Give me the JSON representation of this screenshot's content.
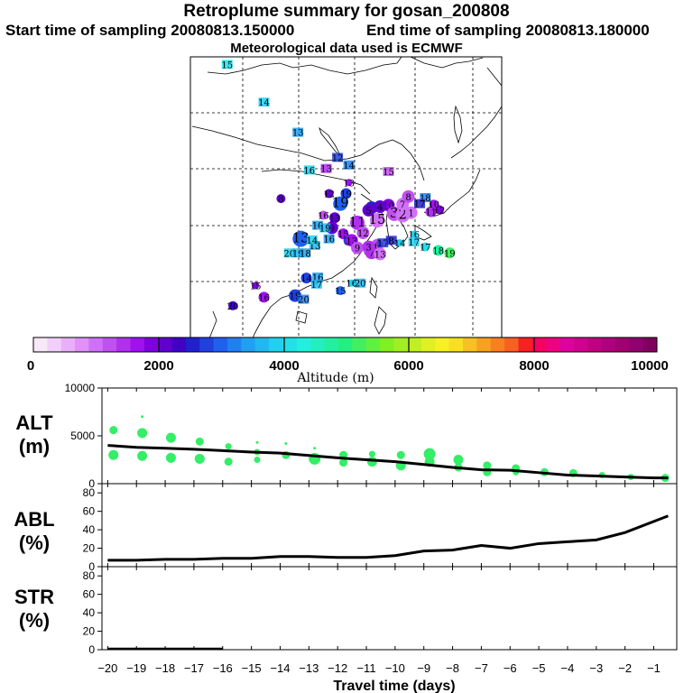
{
  "header": {
    "title": "Retroplume summary for gosan_200808",
    "start_time": "Start time of sampling 20080813.150000",
    "end_time": "End time of sampling 20080813.180000",
    "met_data": "Meteorological data used is ECMWF"
  },
  "colorbar": {
    "tick_labels": [
      "0",
      "2000",
      "4000",
      "6000",
      "8000",
      "10000"
    ],
    "label": "Altitude (m)",
    "colors": [
      "#f8e8f8",
      "#f0d0f8",
      "#e8b0f8",
      "#e090f8",
      "#d070f8",
      "#c050f0",
      "#b030f0",
      "#a010f0",
      "#8000e0",
      "#6000d0",
      "#4000c8",
      "#2020d0",
      "#2040e0",
      "#2060f0",
      "#2080f0",
      "#20a0f0",
      "#20b8f0",
      "#20d0f0",
      "#20e0e8",
      "#20f0e0",
      "#20f0c0",
      "#20f0a0",
      "#20f080",
      "#40f060",
      "#60f040",
      "#80f020",
      "#a0f020",
      "#c0f020",
      "#e0f020",
      "#f8f020",
      "#f8e020",
      "#f8c020",
      "#f8a020",
      "#f88020",
      "#f86020",
      "#f82020",
      "#f80060",
      "#f00080",
      "#e000a0",
      "#d00090",
      "#c00080",
      "#b00080",
      "#a00070",
      "#900070",
      "#800060"
    ]
  },
  "map": {
    "markers": [
      {
        "label": "15",
        "lon": 101.5,
        "lat": 74.5,
        "alt": 4000,
        "size": 0
      },
      {
        "label": "14",
        "lon": 108.0,
        "lat": 67.0,
        "alt": 3800,
        "size": 0
      },
      {
        "label": "13",
        "lon": 114.0,
        "lat": 61.0,
        "alt": 3500,
        "size": 0
      },
      {
        "label": "12",
        "lon": 121.0,
        "lat": 56.0,
        "alt": 2800,
        "size": 0
      },
      {
        "label": "14",
        "lon": 123.0,
        "lat": 54.5,
        "alt": 3300,
        "size": 0
      },
      {
        "label": "16",
        "lon": 116.0,
        "lat": 53.5,
        "alt": 3800,
        "size": 0
      },
      {
        "label": "13",
        "lon": 119.0,
        "lat": 53.8,
        "alt": 1500,
        "size": 0
      },
      {
        "label": "15",
        "lon": 130.0,
        "lat": 53.2,
        "alt": 1300,
        "size": 0
      },
      {
        "label": "13",
        "lon": 123.0,
        "lat": 51.0,
        "alt": 1600,
        "size": 3
      },
      {
        "label": "12",
        "lon": 119.5,
        "lat": 48.8,
        "alt": 2200,
        "size": 4
      },
      {
        "label": "19",
        "lon": 122.5,
        "lat": 48.8,
        "alt": 2800,
        "size": 5
      },
      {
        "label": "8",
        "lon": 111.0,
        "lat": 47.8,
        "alt": 2100,
        "size": 4
      },
      {
        "label": "19",
        "lon": 121.5,
        "lat": 46.8,
        "alt": 2900,
        "size": 7
      },
      {
        "label": "13",
        "lon": 120.5,
        "lat": 44.0,
        "alt": 2100,
        "size": 5
      },
      {
        "label": "9",
        "lon": 120.0,
        "lat": 42.0,
        "alt": 2000,
        "size": 6
      },
      {
        "label": "16",
        "lon": 118.5,
        "lat": 44.5,
        "alt": 1200,
        "size": 4
      },
      {
        "label": "11",
        "lon": 124.5,
        "lat": 43.0,
        "alt": 1500,
        "size": 7
      },
      {
        "label": "14",
        "lon": 127.0,
        "lat": 46.0,
        "alt": 2600,
        "size": 6
      },
      {
        "label": "15",
        "lon": 128.0,
        "lat": 43.5,
        "alt": 1000,
        "size": 7
      },
      {
        "label": "10",
        "lon": 130.0,
        "lat": 46.5,
        "alt": 1800,
        "size": 6
      },
      {
        "label": "5",
        "lon": 126.5,
        "lat": 45.5,
        "alt": 2000,
        "size": 6
      },
      {
        "label": "4",
        "lon": 128.5,
        "lat": 46.2,
        "alt": 2200,
        "size": 6
      },
      {
        "label": "3",
        "lon": 131.0,
        "lat": 44.8,
        "alt": 1200,
        "size": 7
      },
      {
        "label": "2",
        "lon": 132.5,
        "lat": 44.5,
        "alt": 1000,
        "size": 7
      },
      {
        "label": "1",
        "lon": 134.0,
        "lat": 45.0,
        "alt": 1100,
        "size": 6
      },
      {
        "label": "7",
        "lon": 132.5,
        "lat": 46.7,
        "alt": 900,
        "size": 6
      },
      {
        "label": "8",
        "lon": 133.5,
        "lat": 48.2,
        "alt": 1300,
        "size": 6
      },
      {
        "label": "11",
        "lon": 137.5,
        "lat": 45.2,
        "alt": 1500,
        "size": 5
      },
      {
        "label": "12",
        "lon": 139.0,
        "lat": 45.6,
        "alt": 1800,
        "size": 4
      },
      {
        "label": "10",
        "lon": 138.0,
        "lat": 46.7,
        "alt": 1700,
        "size": 4
      },
      {
        "label": "18",
        "lon": 136.5,
        "lat": 48.0,
        "alt": 3200,
        "size": 0
      },
      {
        "label": "17",
        "lon": 135.5,
        "lat": 46.8,
        "alt": 2600,
        "size": 0
      },
      {
        "label": "10",
        "lon": 117.5,
        "lat": 42.5,
        "alt": 3500,
        "size": 0
      },
      {
        "label": "19",
        "lon": 118.8,
        "lat": 42.0,
        "alt": 3700,
        "size": 0
      },
      {
        "label": "15",
        "lon": 122.0,
        "lat": 40.8,
        "alt": 1700,
        "size": 5
      },
      {
        "label": "14",
        "lon": 123.0,
        "lat": 39.5,
        "alt": 2700,
        "size": 5
      },
      {
        "label": "13",
        "lon": 123.5,
        "lat": 39.5,
        "alt": 1700,
        "size": 6
      },
      {
        "label": "12",
        "lon": 125.5,
        "lat": 41.0,
        "alt": 1300,
        "size": 6
      },
      {
        "label": "9",
        "lon": 124.5,
        "lat": 38.0,
        "alt": 1200,
        "size": 6
      },
      {
        "label": "14",
        "lon": 126.5,
        "lat": 37.5,
        "alt": 1000,
        "size": 5
      },
      {
        "label": "6",
        "lon": 128.0,
        "lat": 38.5,
        "alt": 1300,
        "size": 6
      },
      {
        "label": "7",
        "lon": 127.0,
        "lat": 37.0,
        "alt": 1400,
        "size": 6
      },
      {
        "label": "3",
        "lon": 126.5,
        "lat": 38.2,
        "alt": 1400,
        "size": 6
      },
      {
        "label": "13",
        "lon": 128.5,
        "lat": 36.8,
        "alt": 1100,
        "size": 6
      },
      {
        "label": "17",
        "lon": 129.0,
        "lat": 39.0,
        "alt": 2800,
        "size": 0
      },
      {
        "label": "8",
        "lon": 130.5,
        "lat": 39.5,
        "alt": 2500,
        "size": 0
      },
      {
        "label": "13",
        "lon": 114.5,
        "lat": 39.8,
        "alt": 2900,
        "size": 8
      },
      {
        "label": "20",
        "lon": 112.5,
        "lat": 37.0,
        "alt": 3800,
        "size": 0
      },
      {
        "label": "19",
        "lon": 114.0,
        "lat": 37.0,
        "alt": 3700,
        "size": 0
      },
      {
        "label": "18",
        "lon": 115.3,
        "lat": 37.0,
        "alt": 3500,
        "size": 0
      },
      {
        "label": "13",
        "lon": 117.0,
        "lat": 38.5,
        "alt": 3600,
        "size": 0
      },
      {
        "label": "14",
        "lon": 116.5,
        "lat": 39.6,
        "alt": 3800,
        "size": 0
      },
      {
        "label": "16",
        "lon": 119.5,
        "lat": 39.8,
        "alt": 3500,
        "size": 0
      },
      {
        "label": "16",
        "lon": 134.5,
        "lat": 40.7,
        "alt": 3800,
        "size": 3
      },
      {
        "label": "14",
        "lon": 132.0,
        "lat": 39.0,
        "alt": 3800,
        "size": 3
      },
      {
        "label": "17",
        "lon": 134.5,
        "lat": 39.2,
        "alt": 3900,
        "size": 0
      },
      {
        "label": "17",
        "lon": 136.5,
        "lat": 38.2,
        "alt": 4200,
        "size": 4
      },
      {
        "label": "18",
        "lon": 138.8,
        "lat": 37.5,
        "alt": 4700,
        "size": 5
      },
      {
        "label": "19",
        "lon": 140.8,
        "lat": 37.0,
        "alt": 5200,
        "size": 5
      },
      {
        "label": "14",
        "lon": 115.5,
        "lat": 32.0,
        "alt": 2700,
        "size": 5
      },
      {
        "label": "16",
        "lon": 117.5,
        "lat": 32.2,
        "alt": 3500,
        "size": 0
      },
      {
        "label": "17",
        "lon": 117.3,
        "lat": 30.8,
        "alt": 3600,
        "size": 0
      },
      {
        "label": "16",
        "lon": 123.5,
        "lat": 31.0,
        "alt": 3800,
        "size": 3
      },
      {
        "label": "20",
        "lon": 125.0,
        "lat": 31.0,
        "alt": 3600,
        "size": 0
      },
      {
        "label": "15",
        "lon": 121.5,
        "lat": 29.5,
        "alt": 2900,
        "size": 4
      },
      {
        "label": "19",
        "lon": 113.5,
        "lat": 28.5,
        "alt": 2800,
        "size": 6
      },
      {
        "label": "20",
        "lon": 115.0,
        "lat": 27.8,
        "alt": 3300,
        "size": 0
      },
      {
        "label": "15",
        "lon": 106.5,
        "lat": 30.5,
        "alt": 1800,
        "size": 3
      },
      {
        "label": "16",
        "lon": 108.0,
        "lat": 28.2,
        "alt": 1600,
        "size": 5
      },
      {
        "label": "20",
        "lon": 102.5,
        "lat": 26.5,
        "alt": 2300,
        "size": 4
      }
    ]
  },
  "panels": {
    "alt": {
      "title": "ALT",
      "unit": "(m)"
    },
    "abl": {
      "title": "ABL",
      "unit": "(%)"
    },
    "str": {
      "title": "STR",
      "unit": "(%)"
    }
  },
  "chart_data": [
    {
      "type": "scatter+line",
      "title": "ALT (m)",
      "xlabel": "Travel time (days)",
      "ylabel": "ALT (m)",
      "xlim": [
        -20.2,
        -0.2
      ],
      "ylim": [
        0,
        10000
      ],
      "y_ticks": [
        0,
        5000,
        10000
      ],
      "line": {
        "x": [
          -20,
          -19,
          -18,
          -17,
          -16,
          -15,
          -14,
          -13,
          -12,
          -11,
          -10,
          -9,
          -8,
          -7,
          -6,
          -5,
          -4,
          -3,
          -2,
          -1,
          -0.5
        ],
        "y": [
          4000,
          3800,
          3700,
          3600,
          3450,
          3300,
          3200,
          2950,
          2700,
          2500,
          2300,
          2000,
          1700,
          1450,
          1400,
          1150,
          900,
          800,
          700,
          600,
          600
        ]
      },
      "scatter": {
        "points": [
          {
            "x": -19.8,
            "y": 5600,
            "size": 4
          },
          {
            "x": -19.8,
            "y": 3000,
            "size": 5
          },
          {
            "x": -18.8,
            "y": 5300,
            "size": 5
          },
          {
            "x": -18.8,
            "y": 2900,
            "size": 5
          },
          {
            "x": -18.8,
            "y": 7000,
            "size": 1
          },
          {
            "x": -17.8,
            "y": 4800,
            "size": 5
          },
          {
            "x": -17.8,
            "y": 2700,
            "size": 5
          },
          {
            "x": -16.8,
            "y": 4400,
            "size": 4
          },
          {
            "x": -16.8,
            "y": 2600,
            "size": 5
          },
          {
            "x": -15.8,
            "y": 3900,
            "size": 3
          },
          {
            "x": -15.8,
            "y": 2300,
            "size": 4
          },
          {
            "x": -14.8,
            "y": 4300,
            "size": 1
          },
          {
            "x": -14.8,
            "y": 3300,
            "size": 3
          },
          {
            "x": -14.8,
            "y": 2500,
            "size": 3
          },
          {
            "x": -13.8,
            "y": 4200,
            "size": 1
          },
          {
            "x": -13.8,
            "y": 3000,
            "size": 4
          },
          {
            "x": -12.8,
            "y": 3700,
            "size": 1
          },
          {
            "x": -12.8,
            "y": 2600,
            "size": 6
          },
          {
            "x": -11.8,
            "y": 3000,
            "size": 4
          },
          {
            "x": -11.8,
            "y": 2200,
            "size": 4
          },
          {
            "x": -10.8,
            "y": 3100,
            "size": 3
          },
          {
            "x": -10.8,
            "y": 2300,
            "size": 5
          },
          {
            "x": -9.8,
            "y": 3000,
            "size": 4
          },
          {
            "x": -9.8,
            "y": 1900,
            "size": 5
          },
          {
            "x": -8.8,
            "y": 3100,
            "size": 6
          },
          {
            "x": -8.8,
            "y": 2300,
            "size": 5
          },
          {
            "x": -7.8,
            "y": 2500,
            "size": 5
          },
          {
            "x": -7.8,
            "y": 1700,
            "size": 4
          },
          {
            "x": -6.8,
            "y": 1900,
            "size": 4
          },
          {
            "x": -6.8,
            "y": 1200,
            "size": 4
          },
          {
            "x": -5.8,
            "y": 1600,
            "size": 4
          },
          {
            "x": -5.8,
            "y": 1200,
            "size": 3
          },
          {
            "x": -4.8,
            "y": 1200,
            "size": 4
          },
          {
            "x": -3.8,
            "y": 1100,
            "size": 4
          },
          {
            "x": -2.8,
            "y": 900,
            "size": 3
          },
          {
            "x": -1.8,
            "y": 700,
            "size": 3
          },
          {
            "x": -0.6,
            "y": 600,
            "size": 4
          }
        ]
      }
    },
    {
      "type": "line",
      "title": "ABL (%)",
      "ylabel": "ABL (%)",
      "xlim": [
        -20.2,
        -0.2
      ],
      "ylim": [
        0,
        90
      ],
      "y_ticks": [
        0,
        20,
        40,
        60,
        80
      ],
      "x": [
        -20,
        -19,
        -18,
        -17,
        -16,
        -15,
        -14,
        -13,
        -12,
        -11,
        -10,
        -9,
        -8,
        -7,
        -6,
        -5,
        -4,
        -3,
        -2,
        -1,
        -0.5
      ],
      "y": [
        7,
        7,
        8,
        8,
        9,
        9,
        11,
        11,
        10,
        10,
        12,
        17,
        18,
        23,
        20,
        25,
        27,
        29,
        37,
        49,
        55
      ]
    },
    {
      "type": "line",
      "title": "STR (%)",
      "ylabel": "STR (%)",
      "xlim": [
        -20.2,
        -0.2
      ],
      "ylim": [
        0,
        90
      ],
      "y_ticks": [
        0,
        20,
        40,
        60,
        80
      ],
      "x_ticks": [
        -20,
        -19,
        -18,
        -17,
        -16,
        -15,
        -14,
        -13,
        -12,
        -11,
        -10,
        -9,
        -8,
        -7,
        -6,
        -5,
        -4,
        -3,
        -2,
        -1
      ],
      "x_tick_labels": [
        "−20",
        "−19",
        "−18",
        "−17",
        "−16",
        "−15",
        "−14",
        "−13",
        "−12",
        "−11",
        "−10",
        "−9",
        "−8",
        "−7",
        "−6",
        "−5",
        "−4",
        "−3",
        "−2",
        "−1"
      ],
      "x": [
        -20,
        -19,
        -18,
        -17,
        -16
      ],
      "y": [
        1,
        1,
        1,
        1,
        1
      ]
    }
  ]
}
